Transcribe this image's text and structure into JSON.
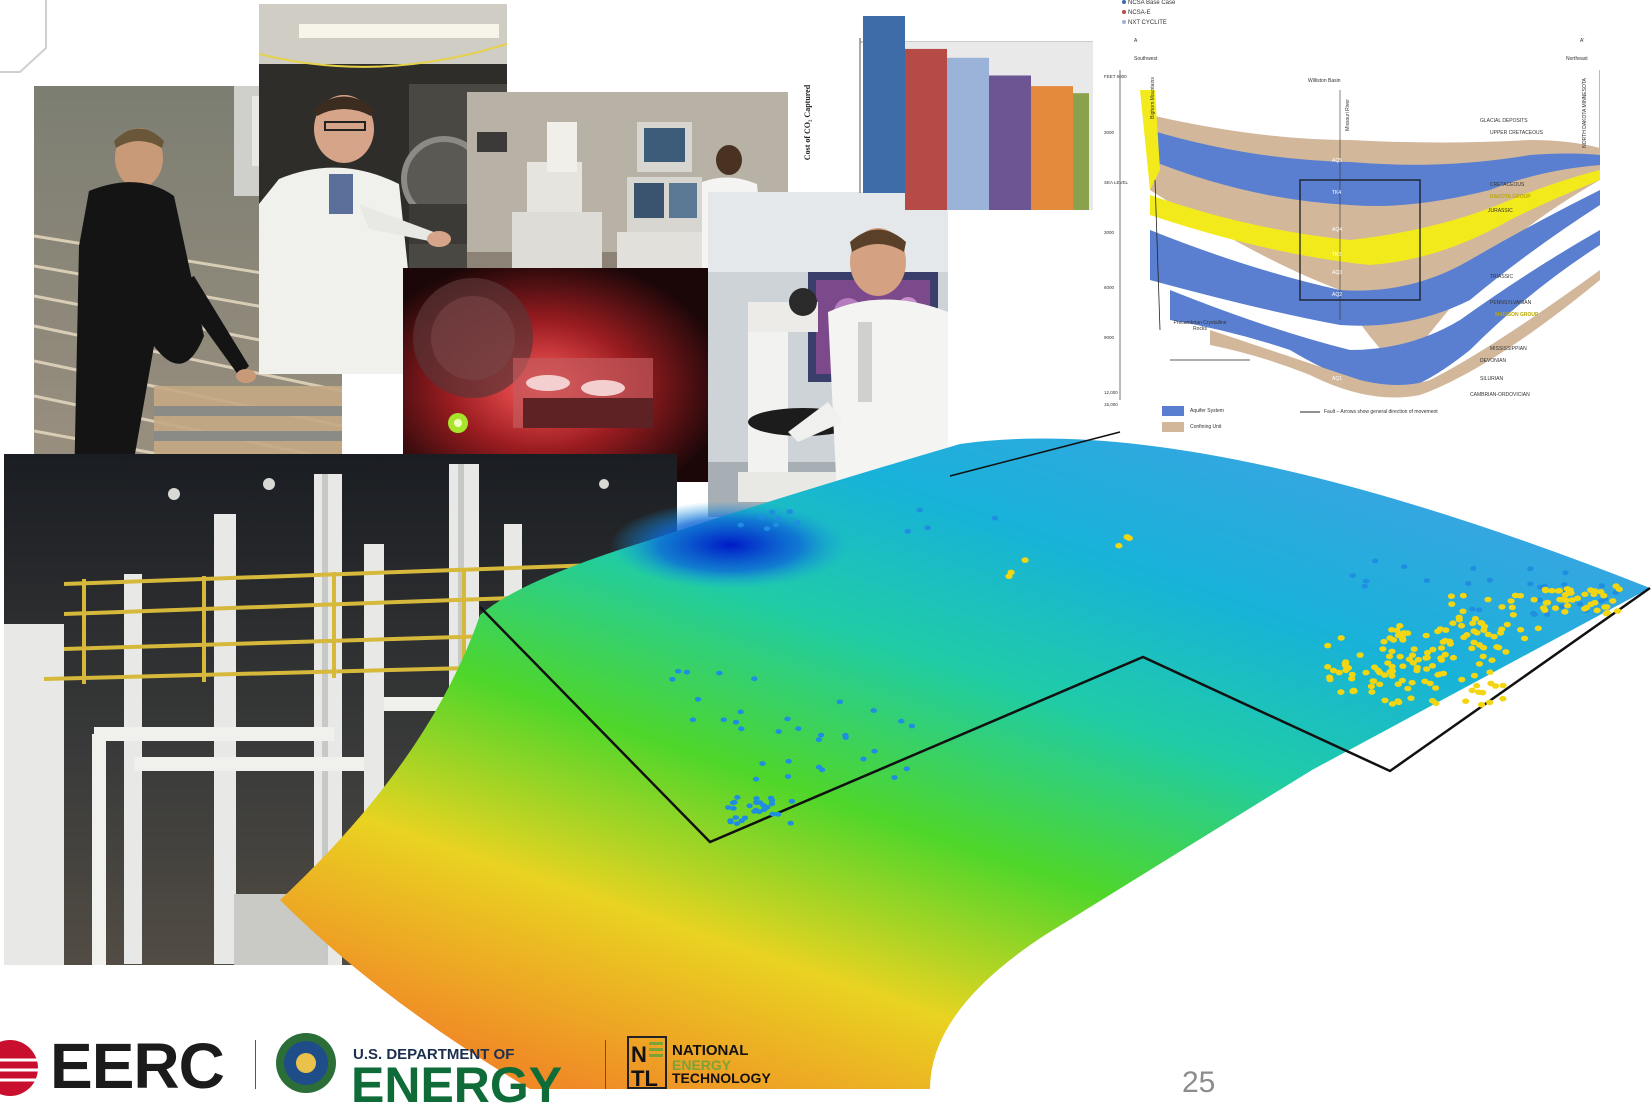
{
  "page_number": "25",
  "bar_chart": {
    "ylabel": "Cost of CO₂ Captured",
    "colors": [
      "#3d6ca8",
      "#b64a46",
      "#9bb3d9",
      "#6c5592",
      "#e48a3c",
      "#8aa14d"
    ],
    "values": [
      100,
      91,
      86,
      76,
      70,
      66
    ]
  },
  "legend": {
    "items": [
      {
        "label": "NCSA Base Case",
        "color": "#3d6ca8"
      },
      {
        "label": "NCSA-E",
        "color": "#b64a46"
      },
      {
        "label": "NXT CYCLITE",
        "color": "#9bb3d9"
      }
    ]
  },
  "cross_section": {
    "left_end": "A",
    "right_end": "A'",
    "left_dir": "Southwest",
    "right_dir": "Northeast",
    "basin_label": "Williston Basin",
    "river_label": "Missouri River",
    "bighorn": "Bighorn Mountains",
    "nd_mn": "NORTH DAKOTA MINNESOTA",
    "depth_labels": [
      "FEET 6000",
      "3000",
      "SEA LEVEL",
      "3000",
      "6000",
      "9000",
      "12,000",
      "15,000"
    ],
    "layer_labels": [
      "GLACIAL DEPOSITS",
      "UPPER CRETACEOUS",
      "CRETACEOUS",
      "DAKOTA GROUP",
      "JURASSIC",
      "TRIASSIC",
      "PENNSYLVANIAN",
      "MADISON GROUP",
      "MISSISSIPPIAN",
      "DEVONIAN",
      "SILURIAN",
      "CAMBRIAN-ORDOVICIAN"
    ],
    "aquifer_codes": [
      "AQ5",
      "TK4",
      "AQ4",
      "TK3",
      "AQ3",
      "AQ2",
      "TK1",
      "AQ1"
    ],
    "precambrian": "Precambrian Crystalline Rocks",
    "legend_aquifer": "Aquifer System",
    "legend_confining": "Confining Unit",
    "legend_fault": "Fault – Arrows show general direction of movement",
    "aquifer_color": "#5a7fd0",
    "confining_color": "#d2b79a",
    "yellow_color": "#f3ea1c"
  },
  "logos": {
    "eerc": "EERC",
    "doe_top": "U.S. DEPARTMENT OF",
    "doe_main": "ENERGY",
    "netl_lines": [
      "NATIONAL",
      "ENERGY",
      "TECHNOLOGY"
    ]
  }
}
